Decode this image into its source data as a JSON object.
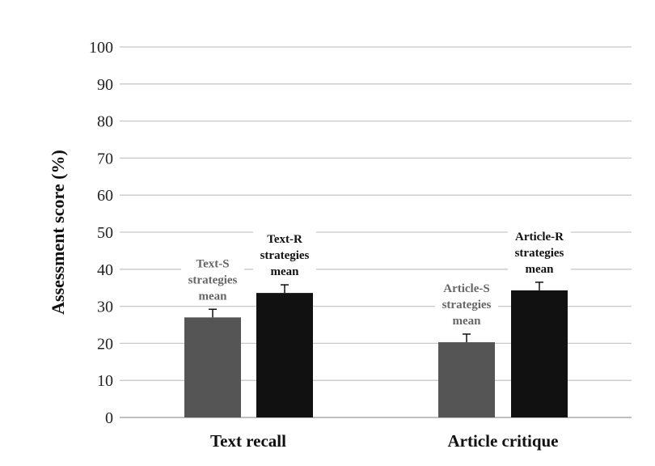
{
  "chart_data": {
    "type": "bar",
    "categories": [
      "Text recall",
      "Article critique"
    ],
    "ylabel": "Assessment score (%)",
    "ylim": [
      0,
      100
    ],
    "yticks": [
      0,
      10,
      20,
      30,
      40,
      50,
      60,
      70,
      80,
      90,
      100
    ],
    "grid": true,
    "bars": [
      {
        "category": "Text recall",
        "label": [
          "Text-S",
          "strategies",
          "mean"
        ],
        "value": 27,
        "error": 2.2,
        "color": "#555555",
        "label_color": "#666666"
      },
      {
        "category": "Text recall",
        "label": [
          "Text-R",
          "strategies",
          "mean"
        ],
        "value": 33.6,
        "error": 2.2,
        "color": "#111111",
        "label_color": "#111111"
      },
      {
        "category": "Article critique",
        "label": [
          "Article-S",
          "strategies",
          "mean"
        ],
        "value": 20.3,
        "error": 2.2,
        "color": "#555555",
        "label_color": "#666666"
      },
      {
        "category": "Article critique",
        "label": [
          "Article-R",
          "strategies",
          "mean"
        ],
        "value": 34.3,
        "error": 2.2,
        "color": "#111111",
        "label_color": "#111111"
      }
    ]
  }
}
